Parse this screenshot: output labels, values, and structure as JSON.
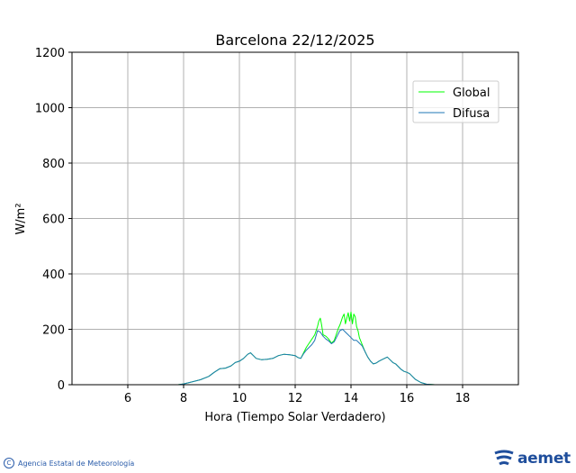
{
  "chart_data": {
    "type": "line",
    "title": "Barcelona 22/12/2025",
    "xlabel": "Hora (Tiempo Solar Verdadero)",
    "ylabel": "W/m²",
    "xlim": [
      4,
      20
    ],
    "ylim": [
      0,
      1200
    ],
    "xticks": [
      6,
      8,
      10,
      12,
      14,
      16,
      18
    ],
    "yticks": [
      0,
      200,
      400,
      600,
      800,
      1000,
      1200
    ],
    "grid": true,
    "legend_position": "top-right",
    "series": [
      {
        "name": "Global",
        "color": "#00ff00",
        "x": [
          4,
          7.8,
          8.0,
          8.3,
          8.6,
          8.9,
          9.1,
          9.3,
          9.5,
          9.7,
          9.85,
          10.0,
          10.15,
          10.3,
          10.4,
          10.5,
          10.6,
          10.8,
          11.0,
          11.2,
          11.4,
          11.6,
          11.8,
          12.0,
          12.1,
          12.2,
          12.3,
          12.4,
          12.5,
          12.6,
          12.7,
          12.8,
          12.85,
          12.9,
          12.95,
          13.0,
          13.1,
          13.2,
          13.3,
          13.4,
          13.5,
          13.55,
          13.6,
          13.65,
          13.7,
          13.75,
          13.8,
          13.85,
          13.9,
          13.95,
          14.0,
          14.05,
          14.1,
          14.15,
          14.2,
          14.25,
          14.3,
          14.4,
          14.5,
          14.6,
          14.7,
          14.8,
          14.9,
          15.0,
          15.1,
          15.2,
          15.3,
          15.4,
          15.5,
          15.6,
          15.7,
          15.8,
          15.9,
          16.0,
          16.1,
          16.2,
          16.3,
          16.5,
          16.7,
          17.0,
          18.0,
          20.0
        ],
        "y": [
          0,
          0,
          3,
          10,
          18,
          30,
          45,
          58,
          60,
          68,
          80,
          85,
          95,
          110,
          115,
          105,
          95,
          90,
          92,
          95,
          105,
          110,
          108,
          105,
          98,
          95,
          115,
          135,
          150,
          165,
          180,
          210,
          230,
          240,
          215,
          180,
          175,
          165,
          150,
          160,
          190,
          205,
          215,
          230,
          245,
          255,
          220,
          240,
          260,
          230,
          262,
          220,
          255,
          245,
          210,
          195,
          170,
          145,
          120,
          100,
          85,
          75,
          78,
          85,
          90,
          95,
          100,
          90,
          80,
          75,
          65,
          55,
          48,
          45,
          40,
          30,
          20,
          8,
          2,
          0,
          0,
          0
        ]
      },
      {
        "name": "Difusa",
        "color": "#1f77b4",
        "x": [
          4,
          7.8,
          8.0,
          8.3,
          8.6,
          8.9,
          9.1,
          9.3,
          9.5,
          9.7,
          9.85,
          10.0,
          10.15,
          10.3,
          10.4,
          10.5,
          10.6,
          10.8,
          11.0,
          11.2,
          11.4,
          11.6,
          11.8,
          12.0,
          12.1,
          12.2,
          12.3,
          12.4,
          12.5,
          12.6,
          12.7,
          12.8,
          12.9,
          13.0,
          13.1,
          13.2,
          13.3,
          13.4,
          13.5,
          13.6,
          13.7,
          13.8,
          13.9,
          14.0,
          14.1,
          14.2,
          14.3,
          14.4,
          14.5,
          14.6,
          14.7,
          14.8,
          14.9,
          15.0,
          15.1,
          15.2,
          15.3,
          15.4,
          15.5,
          15.6,
          15.7,
          15.8,
          15.9,
          16.0,
          16.1,
          16.2,
          16.3,
          16.5,
          16.7,
          17.0,
          18.0,
          20.0
        ],
        "y": [
          0,
          0,
          3,
          10,
          18,
          30,
          45,
          58,
          60,
          68,
          80,
          85,
          95,
          110,
          115,
          105,
          95,
          90,
          92,
          95,
          105,
          110,
          108,
          105,
          98,
          95,
          112,
          125,
          135,
          145,
          160,
          195,
          190,
          175,
          165,
          158,
          148,
          155,
          175,
          195,
          200,
          190,
          180,
          170,
          160,
          160,
          150,
          140,
          120,
          100,
          85,
          75,
          78,
          85,
          90,
          95,
          100,
          90,
          80,
          75,
          65,
          55,
          48,
          45,
          40,
          30,
          20,
          8,
          2,
          0,
          0,
          0
        ]
      }
    ]
  },
  "footer": {
    "agency": "Agencia Estatal de Meteorología",
    "copyright_symbol": "C",
    "logo_text": "aemet"
  }
}
